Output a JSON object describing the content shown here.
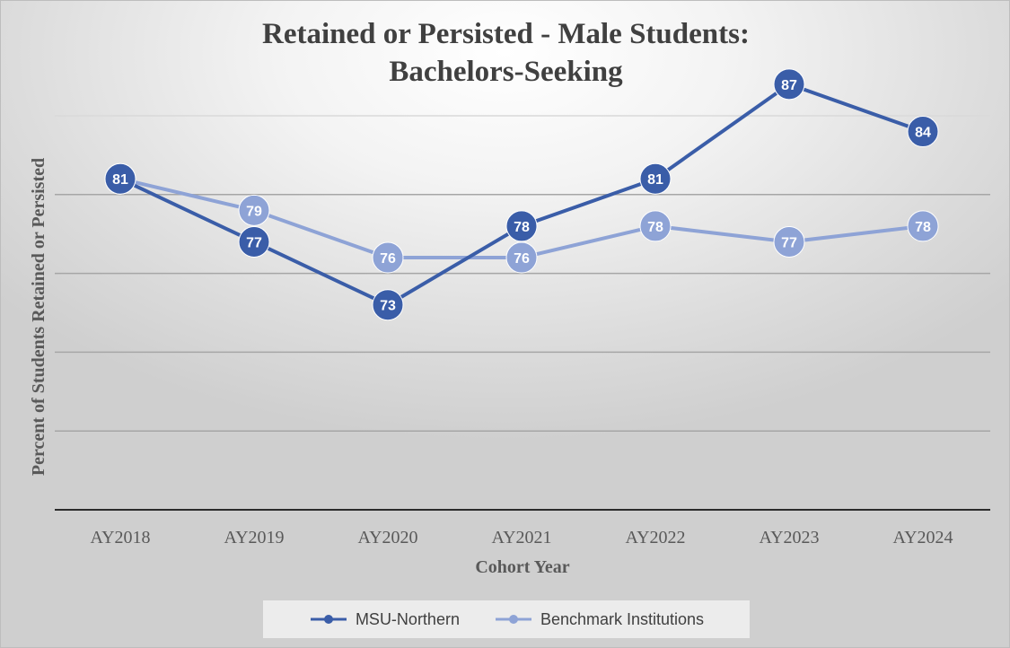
{
  "chart_data": {
    "type": "line",
    "title_lines": [
      "Retained or Persisted - Male Students:",
      "Bachelors-Seeking"
    ],
    "xlabel": "Cohort Year",
    "ylabel": "Percent of  Students Retained or Persisted",
    "categories": [
      "AY2018",
      "AY2019",
      "AY2020",
      "AY2021",
      "AY2022",
      "AY2023",
      "AY2024"
    ],
    "ylim": [
      60,
      85
    ],
    "grid": true,
    "legend_position": "bottom",
    "series": [
      {
        "name": "MSU-Northern",
        "color": "#3a5da8",
        "values": [
          81,
          77,
          73,
          78,
          81,
          87,
          84
        ]
      },
      {
        "name": "Benchmark Institutions",
        "color": "#8ea3d6",
        "values": [
          81,
          79,
          76,
          76,
          78,
          77,
          78
        ]
      }
    ]
  }
}
